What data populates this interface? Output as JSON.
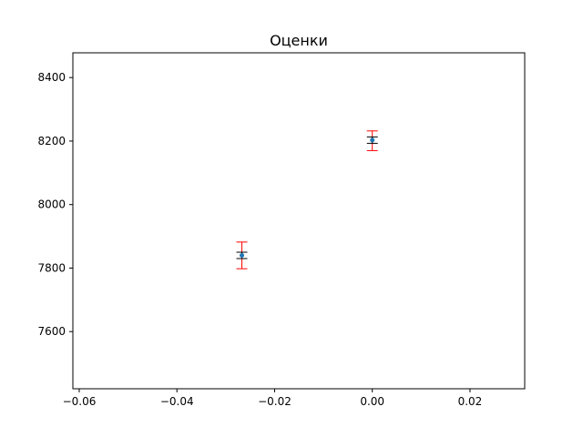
{
  "chart_data": {
    "type": "scatter",
    "title": "Оценки",
    "xlabel": "",
    "ylabel": "",
    "xlim": [
      -0.0613,
      0.0312
    ],
    "ylim": [
      7420,
      8478
    ],
    "x_ticks": [
      -0.06,
      -0.04,
      -0.02,
      0.0,
      0.02
    ],
    "x_tick_labels": [
      "−0.06",
      "−0.04",
      "−0.02",
      "0.00",
      "0.02"
    ],
    "y_ticks": [
      7600,
      7800,
      8000,
      8200,
      8400
    ],
    "y_tick_labels": [
      "7600",
      "7800",
      "8000",
      "8200",
      "8400"
    ],
    "grid": false,
    "points": [
      {
        "x": -0.0267,
        "y": 7840,
        "inner_error": [
          7830,
          7850
        ],
        "outer_error": [
          7798,
          7882
        ]
      },
      {
        "x": 0.0,
        "y": 8203,
        "inner_error": [
          8193,
          8213
        ],
        "outer_error": [
          8170,
          8232
        ]
      }
    ],
    "colors": {
      "point": "#1f77b4",
      "inner_error": "#000000",
      "outer_error": "#ff0000"
    }
  }
}
